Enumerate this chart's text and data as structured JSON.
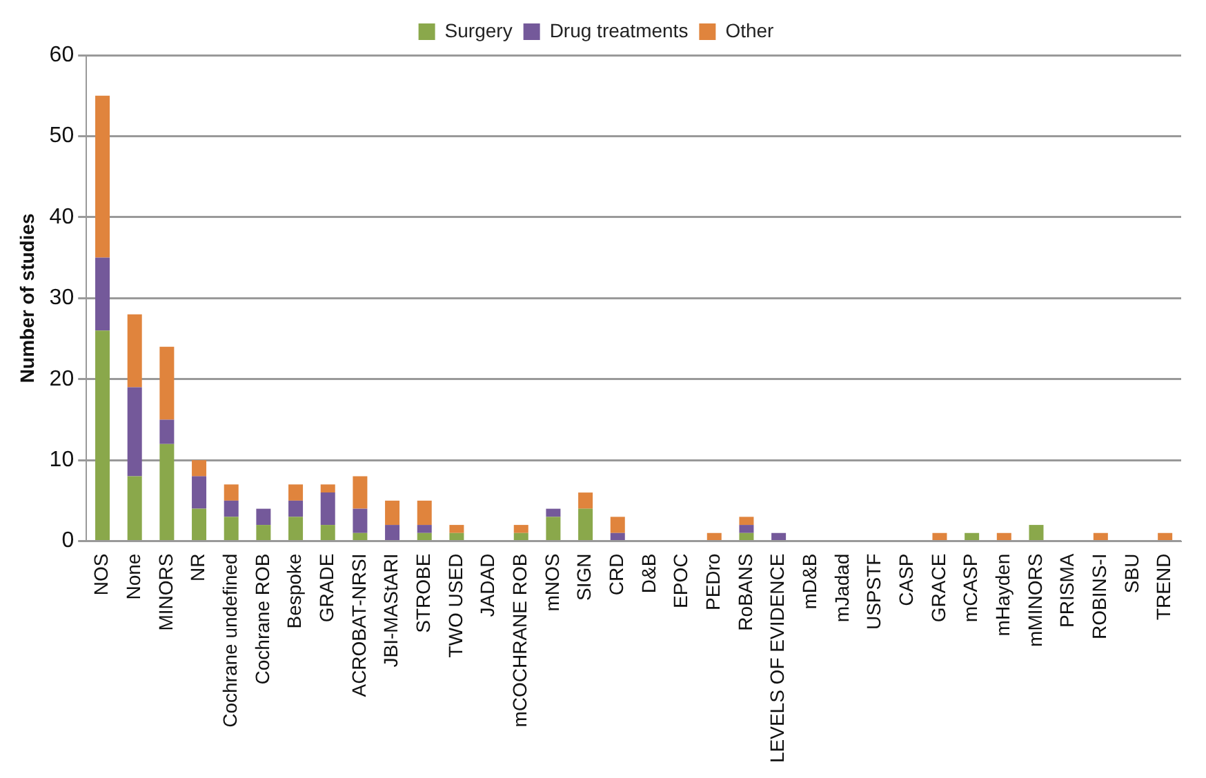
{
  "chart_data": {
    "type": "bar",
    "stacked": true,
    "ylabel": "Number of studies",
    "categories": [
      "NOS",
      "None",
      "MINORS",
      "NR",
      "Cochrane undefined",
      "Cochrane ROB",
      "Bespoke",
      "GRADE",
      "ACROBAT-NRSI",
      "JBI-MAStARI",
      "STROBE",
      "TWO USED",
      "JADAD",
      "mCOCHRANE ROB",
      "mNOS",
      "SIGN",
      "CRD",
      "D&B",
      "EPOC",
      "PEDro",
      "RoBANS",
      "LEVELS OF EVIDENCE",
      "mD&B",
      "mJadad",
      "USPSTF",
      "CASP",
      "GRACE",
      "mCASP",
      "mHayden",
      "mMINORS",
      "PRISMA",
      "ROBINS-I",
      "SBU",
      "TREND"
    ],
    "series": [
      {
        "name": "Surgery",
        "color": "#8aa84b",
        "values": [
          26,
          8,
          12,
          4,
          3,
          2,
          3,
          2,
          1,
          0,
          1,
          1,
          0,
          1,
          3,
          4,
          0,
          0,
          0,
          0,
          1,
          0,
          0,
          0,
          0,
          0,
          0,
          1,
          0,
          2,
          0,
          0,
          0,
          0
        ]
      },
      {
        "name": "Drug treatments",
        "color": "#74599a",
        "values": [
          9,
          11,
          3,
          4,
          2,
          2,
          2,
          4,
          3,
          2,
          1,
          0,
          0,
          0,
          1,
          0,
          1,
          0,
          0,
          0,
          1,
          1,
          0,
          0,
          0,
          0,
          0,
          0,
          0,
          0,
          0,
          0,
          0,
          0
        ]
      },
      {
        "name": "Other",
        "color": "#e0843d",
        "values": [
          20,
          9,
          9,
          2,
          2,
          0,
          2,
          1,
          4,
          3,
          3,
          1,
          0,
          1,
          0,
          2,
          2,
          0,
          0,
          1,
          1,
          0,
          0,
          0,
          0,
          0,
          1,
          0,
          1,
          0,
          0,
          1,
          0,
          1
        ]
      }
    ],
    "ylim": [
      0,
      60
    ],
    "yticks": [
      0,
      10,
      20,
      30,
      40,
      50,
      60
    ],
    "grid": "y",
    "legend": "top"
  }
}
